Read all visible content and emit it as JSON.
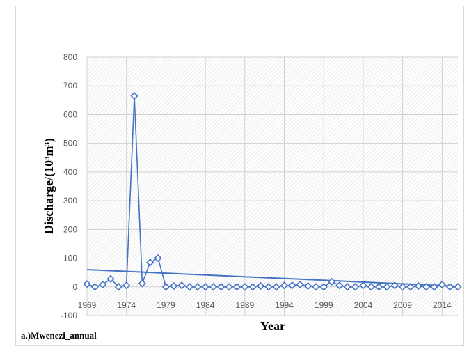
{
  "chart_data": {
    "type": "line",
    "xlabel": "Year",
    "ylabel": "Discharge/(10³m³)",
    "caption": "a.)Mwenezi_annual",
    "xlim": [
      1969,
      2016
    ],
    "ylim": [
      -100,
      800
    ],
    "x_ticks": [
      1969,
      1974,
      1979,
      1984,
      1989,
      1994,
      1999,
      2004,
      2009,
      2014
    ],
    "y_ticks": [
      -100,
      0,
      100,
      200,
      300,
      400,
      500,
      600,
      700,
      800
    ],
    "grid": true,
    "background": "hatched",
    "series": [
      {
        "color": "#4472c4",
        "marker": "diamond",
        "x": [
          1969,
          1970,
          1971,
          1972,
          1973,
          1974,
          1975,
          1976,
          1977,
          1978,
          1979,
          1980,
          1981,
          1982,
          1983,
          1984,
          1985,
          1986,
          1987,
          1988,
          1989,
          1990,
          1991,
          1992,
          1993,
          1994,
          1995,
          1996,
          1997,
          1998,
          1999,
          2000,
          2001,
          2002,
          2003,
          2004,
          2005,
          2006,
          2007,
          2008,
          2009,
          2010,
          2011,
          2012,
          2013,
          2014,
          2015,
          2016
        ],
        "y": [
          10,
          0,
          8,
          28,
          0,
          5,
          665,
          12,
          85,
          100,
          0,
          3,
          5,
          0,
          0,
          0,
          0,
          0,
          0,
          0,
          0,
          0,
          3,
          0,
          0,
          5,
          5,
          8,
          3,
          0,
          0,
          18,
          5,
          0,
          0,
          5,
          0,
          0,
          0,
          5,
          0,
          0,
          3,
          0,
          0,
          8,
          0,
          0
        ]
      }
    ],
    "trendline": {
      "color": "#4472c4",
      "x": [
        1969,
        2016
      ],
      "y": [
        60,
        2
      ]
    }
  }
}
